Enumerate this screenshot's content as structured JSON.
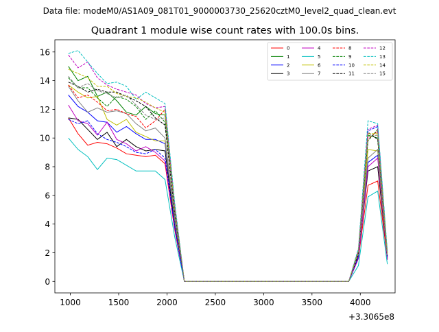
{
  "suptitle": "Data file: modeM0/AS1A09_081T01_9000003730_25620cztM0_level2_quad_clean.evt",
  "chart_data": {
    "type": "line",
    "title": "Quadrant 1 module wise count rates with 100.0s bins.",
    "xlabel": "",
    "ylabel": "",
    "x_offset_label": "+3.3065e8",
    "xlim": [
      840,
      4360
    ],
    "ylim": [
      -0.8,
      16.85
    ],
    "x_ticks": [
      1000,
      1500,
      2000,
      2500,
      3000,
      3500,
      4000
    ],
    "y_ticks": [
      0,
      2,
      4,
      6,
      8,
      10,
      12,
      14,
      16
    ],
    "grid": false,
    "legend_position": "top-right",
    "legend_columns": 4,
    "x": [
      980,
      1080,
      1180,
      1280,
      1380,
      1480,
      1580,
      1680,
      1780,
      1880,
      1980,
      2080,
      2180,
      2280,
      2380,
      2480,
      2580,
      2680,
      2780,
      2880,
      2980,
      3080,
      3180,
      3280,
      3380,
      3480,
      3580,
      3680,
      3780,
      3880,
      3980,
      4080,
      4180,
      4280
    ],
    "series": [
      {
        "name": "0",
        "color": "#ff0000",
        "dash": "solid",
        "values": [
          11.4,
          10.3,
          9.5,
          9.7,
          9.6,
          9.3,
          8.9,
          8.8,
          8.7,
          8.8,
          8.2,
          3.6,
          0,
          0,
          0,
          0,
          0,
          0,
          0,
          0,
          0,
          0,
          0,
          0,
          0,
          0,
          0,
          0,
          0,
          0,
          1.6,
          6.7,
          7.0,
          1.6
        ]
      },
      {
        "name": "1",
        "color": "#008000",
        "dash": "solid",
        "values": [
          15.0,
          14.0,
          14.3,
          12.9,
          13.2,
          12.6,
          11.8,
          11.6,
          12.2,
          11.7,
          11.6,
          5.0,
          0,
          0,
          0,
          0,
          0,
          0,
          0,
          0,
          0,
          0,
          0,
          0,
          0,
          0,
          0,
          0,
          0,
          0,
          2.0,
          10.2,
          10.0,
          2.0
        ]
      },
      {
        "name": "2",
        "color": "#0000ff",
        "dash": "solid",
        "values": [
          13.0,
          12.2,
          11.8,
          11.2,
          11.1,
          10.4,
          10.8,
          10.3,
          9.9,
          9.9,
          9.6,
          4.3,
          0,
          0,
          0,
          0,
          0,
          0,
          0,
          0,
          0,
          0,
          0,
          0,
          0,
          0,
          0,
          0,
          0,
          0,
          1.8,
          8.3,
          8.8,
          1.8
        ]
      },
      {
        "name": "3",
        "color": "#000000",
        "dash": "solid",
        "values": [
          11.4,
          11.3,
          10.6,
          9.9,
          10.4,
          9.4,
          9.9,
          9.4,
          9.1,
          9.2,
          9.1,
          3.9,
          0,
          0,
          0,
          0,
          0,
          0,
          0,
          0,
          0,
          0,
          0,
          0,
          0,
          0,
          0,
          0,
          0,
          0,
          1.7,
          7.7,
          8.0,
          1.6
        ]
      },
      {
        "name": "4",
        "color": "#bf00bf",
        "dash": "solid",
        "values": [
          12.3,
          11.2,
          11.0,
          10.2,
          11.1,
          9.9,
          9.6,
          9.1,
          9.4,
          9.0,
          8.4,
          3.7,
          0,
          0,
          0,
          0,
          0,
          0,
          0,
          0,
          0,
          0,
          0,
          0,
          0,
          0,
          0,
          0,
          0,
          0,
          1.6,
          8.0,
          8.6,
          1.5
        ]
      },
      {
        "name": "5",
        "color": "#00bfbf",
        "dash": "solid",
        "values": [
          10.0,
          9.2,
          8.7,
          7.8,
          8.6,
          8.5,
          8.1,
          7.7,
          7.7,
          7.7,
          7.1,
          3.1,
          0,
          0,
          0,
          0,
          0,
          0,
          0,
          0,
          0,
          0,
          0,
          0,
          0,
          0,
          0,
          0,
          0,
          0,
          1.1,
          5.9,
          6.3,
          1.2
        ]
      },
      {
        "name": "6",
        "color": "#bfbf00",
        "dash": "solid",
        "values": [
          13.7,
          13.2,
          12.8,
          12.9,
          11.3,
          10.9,
          11.3,
          10.4,
          10.1,
          9.8,
          9.8,
          4.4,
          0,
          0,
          0,
          0,
          0,
          0,
          0,
          0,
          0,
          0,
          0,
          0,
          0,
          0,
          0,
          0,
          0,
          0,
          1.9,
          9.2,
          9.1,
          1.7
        ]
      },
      {
        "name": "7",
        "color": "#808080",
        "dash": "solid",
        "values": [
          13.6,
          12.6,
          11.8,
          12.1,
          11.8,
          11.9,
          11.7,
          11.0,
          10.5,
          10.7,
          10.0,
          4.5,
          0,
          0,
          0,
          0,
          0,
          0,
          0,
          0,
          0,
          0,
          0,
          0,
          0,
          0,
          0,
          0,
          0,
          0,
          1.9,
          8.6,
          9.2,
          1.8
        ]
      },
      {
        "name": "8",
        "color": "#ff0000",
        "dash": "dashed",
        "values": [
          13.7,
          12.8,
          13.0,
          12.5,
          11.9,
          12.0,
          11.7,
          11.5,
          10.7,
          11.2,
          12.0,
          5.0,
          0,
          0,
          0,
          0,
          0,
          0,
          0,
          0,
          0,
          0,
          0,
          0,
          0,
          0,
          0,
          0,
          0,
          0,
          2.0,
          9.9,
          10.5,
          1.8
        ]
      },
      {
        "name": "9",
        "color": "#008000",
        "dash": "dashed",
        "values": [
          14.2,
          13.5,
          13.5,
          12.8,
          12.2,
          12.9,
          12.7,
          12.2,
          11.3,
          11.9,
          11.1,
          4.9,
          0,
          0,
          0,
          0,
          0,
          0,
          0,
          0,
          0,
          0,
          0,
          0,
          0,
          0,
          0,
          0,
          0,
          0,
          2.0,
          9.8,
          10.6,
          1.9
        ]
      },
      {
        "name": "10",
        "color": "#0000ff",
        "dash": "dashed",
        "values": [
          11.3,
          11.0,
          11.2,
          10.3,
          9.9,
          9.7,
          9.4,
          9.0,
          8.9,
          9.2,
          8.6,
          3.8,
          0,
          0,
          0,
          0,
          0,
          0,
          0,
          0,
          0,
          0,
          0,
          0,
          0,
          0,
          0,
          0,
          0,
          0,
          1.7,
          10.5,
          10.8,
          1.7
        ]
      },
      {
        "name": "11",
        "color": "#000000",
        "dash": "dashed",
        "values": [
          13.9,
          13.6,
          13.2,
          13.4,
          13.2,
          13.2,
          12.9,
          12.6,
          12.2,
          11.4,
          10.9,
          4.8,
          0,
          0,
          0,
          0,
          0,
          0,
          0,
          0,
          0,
          0,
          0,
          0,
          0,
          0,
          0,
          0,
          0,
          0,
          1.9,
          10.4,
          9.9,
          1.8
        ]
      },
      {
        "name": "12",
        "color": "#bf00bf",
        "dash": "dashed",
        "values": [
          15.8,
          14.9,
          15.3,
          14.2,
          13.7,
          13.4,
          13.2,
          13.0,
          12.4,
          12.1,
          12.2,
          5.3,
          0,
          0,
          0,
          0,
          0,
          0,
          0,
          0,
          0,
          0,
          0,
          0,
          0,
          0,
          0,
          0,
          0,
          0,
          2.2,
          10.6,
          10.9,
          2.0
        ]
      },
      {
        "name": "13",
        "color": "#00bfbf",
        "dash": "dashed",
        "values": [
          15.9,
          16.1,
          15.3,
          14.5,
          13.8,
          13.9,
          13.6,
          12.7,
          13.2,
          12.8,
          12.4,
          5.5,
          0,
          0,
          0,
          0,
          0,
          0,
          0,
          0,
          0,
          0,
          0,
          0,
          0,
          0,
          0,
          0,
          0,
          0,
          2.3,
          11.2,
          11.0,
          2.1
        ]
      },
      {
        "name": "14",
        "color": "#bfbf00",
        "dash": "dashed",
        "values": [
          14.8,
          14.5,
          14.2,
          13.6,
          13.6,
          13.1,
          12.9,
          12.8,
          12.5,
          12.1,
          11.8,
          5.1,
          0,
          0,
          0,
          0,
          0,
          0,
          0,
          0,
          0,
          0,
          0,
          0,
          0,
          0,
          0,
          0,
          0,
          0,
          2.1,
          10.3,
          10.3,
          1.9
        ]
      },
      {
        "name": "15",
        "color": "#808080",
        "dash": "dashed",
        "values": [
          14.3,
          13.5,
          13.8,
          13.3,
          13.1,
          12.8,
          13.0,
          12.3,
          11.6,
          11.3,
          11.4,
          4.9,
          0,
          0,
          0,
          0,
          0,
          0,
          0,
          0,
          0,
          0,
          0,
          0,
          0,
          0,
          0,
          0,
          0,
          0,
          1.9,
          10.1,
          10.2,
          1.8
        ]
      }
    ]
  }
}
